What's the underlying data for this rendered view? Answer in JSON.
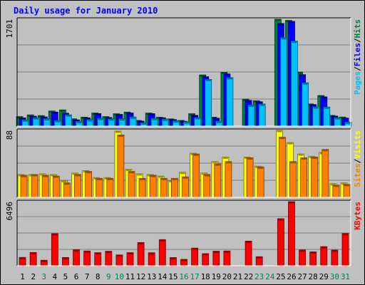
{
  "chart_data": {
    "title": "Daily usage for January 2010",
    "type": "bar",
    "categories": [
      "1",
      "2",
      "3",
      "4",
      "5",
      "6",
      "7",
      "8",
      "9",
      "10",
      "11",
      "12",
      "13",
      "14",
      "15",
      "16",
      "17",
      "18",
      "19",
      "20",
      "21",
      "22",
      "23",
      "24",
      "25",
      "26",
      "27",
      "28",
      "29",
      "30",
      "31"
    ],
    "weekend_days": [
      "3",
      "9",
      "10",
      "16",
      "17",
      "23",
      "24",
      "30",
      "31"
    ],
    "panels": [
      {
        "id": "hits",
        "max_label": "1701",
        "ymax": 1701,
        "legend": [
          {
            "text": "Pages",
            "color": "#00c0ff"
          },
          {
            "text": "/",
            "color": "#000000"
          },
          {
            "text": "Files",
            "color": "#0000ff"
          },
          {
            "text": "/",
            "color": "#000000"
          },
          {
            "text": "Hits",
            "color": "#008040"
          }
        ],
        "series": [
          {
            "name": "Hits",
            "color": "#008040",
            "values": [
              152,
              179,
              168,
              241,
              258,
              117,
              143,
              209,
              152,
              197,
              224,
              91,
              208,
              142,
              116,
              91,
              198,
              815,
              143,
              857,
              0,
              430,
              404,
              0,
              1701,
              1683,
              861,
              353,
              487,
              171,
              145
            ]
          },
          {
            "name": "Files",
            "color": "#0000ff",
            "values": [
              131,
              158,
              147,
              223,
              206,
              100,
              132,
              199,
              137,
              186,
              208,
              80,
              198,
              133,
              105,
              77,
              171,
              786,
              127,
              831,
              0,
              409,
              388,
              0,
              1634,
              1667,
              819,
              343,
              466,
              160,
              128
            ]
          },
          {
            "name": "Pages",
            "color": "#00c0ff",
            "values": [
              100,
              134,
              118,
              91,
              180,
              75,
              104,
              124,
              117,
              118,
              145,
              54,
              123,
              112,
              84,
              69,
              136,
              743,
              77,
              772,
              0,
              336,
              352,
              0,
              1408,
              1353,
              690,
              307,
              304,
              134,
              64
            ]
          }
        ]
      },
      {
        "id": "visits",
        "max_label": "88",
        "ymax": 88,
        "legend": [
          {
            "text": "Sites",
            "color": "#ff8000"
          },
          {
            "text": "/",
            "color": "#000000"
          },
          {
            "text": "Visits",
            "color": "#ffff00"
          }
        ],
        "series": [
          {
            "name": "Visits",
            "color": "#ffff00",
            "values": [
              30,
              30,
              31,
              30,
              22,
              32,
              35,
              26,
              26,
              87,
              37,
              31,
              30,
              28,
              22,
              33,
              58,
              32,
              47,
              53,
              0,
              53,
              41,
              0,
              88,
              72,
              57,
              54,
              59,
              18,
              19
            ]
          },
          {
            "name": "Sites",
            "color": "#ff8000",
            "values": [
              29,
              30,
              29,
              28,
              19,
              30,
              34,
              25,
              25,
              82,
              34,
              25,
              29,
              25,
              25,
              27,
              57,
              30,
              44,
              47,
              0,
              52,
              40,
              0,
              79,
              47,
              52,
              53,
              63,
              16,
              17
            ]
          }
        ]
      },
      {
        "id": "kbytes",
        "max_label": "6496",
        "ymax": 6496,
        "legend": [
          {
            "text": "KBytes",
            "color": "#ff0000"
          }
        ],
        "series": [
          {
            "name": "KBytes",
            "color": "#ff0000",
            "values": [
              850,
              1350,
              560,
              3250,
              840,
              1620,
              1500,
              1330,
              1470,
              1100,
              1330,
              2350,
              1320,
              2650,
              830,
              650,
              1790,
              1230,
              1480,
              1500,
              0,
              2500,
              920,
              0,
              4770,
              6496,
              1600,
              1410,
              1940,
              1590,
              3270
            ]
          }
        ]
      }
    ]
  }
}
